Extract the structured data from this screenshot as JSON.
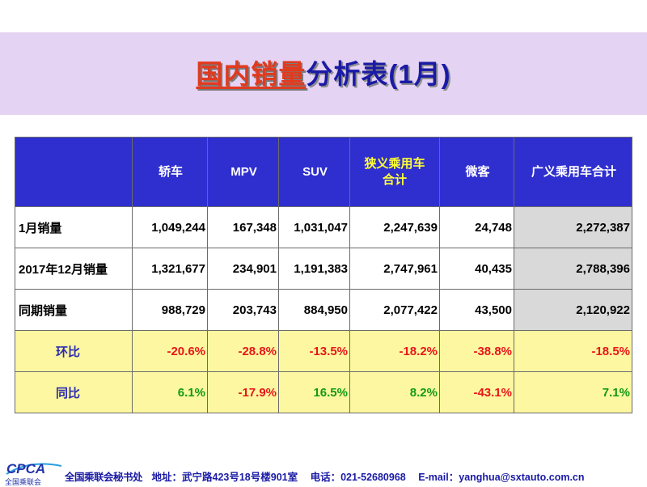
{
  "title": {
    "red": "国内销量",
    "blue": "分析表(1月)"
  },
  "table": {
    "headers": [
      "",
      "轿车",
      "MPV",
      "SUV",
      "狭义乘用车合计",
      "微客",
      "广义乘用车合计"
    ],
    "rows": [
      {
        "label": "1月销量",
        "values": [
          "1,049,244",
          "167,348",
          "1,031,047",
          "2,247,639",
          "24,748",
          "2,272,387"
        ]
      },
      {
        "label": "2017年12月销量",
        "values": [
          "1,321,677",
          "234,901",
          "1,191,383",
          "2,747,961",
          "40,435",
          "2,788,396"
        ]
      },
      {
        "label": "同期销量",
        "values": [
          "988,729",
          "203,743",
          "884,950",
          "2,077,422",
          "43,500",
          "2,120,922"
        ]
      },
      {
        "label": "环比",
        "values": [
          "-20.6%",
          "-28.8%",
          "-13.5%",
          "-18.2%",
          "-38.8%",
          "-18.5%"
        ]
      },
      {
        "label": "同比",
        "values": [
          "6.1%",
          "-17.9%",
          "16.5%",
          "8.2%",
          "-43.1%",
          "7.1%"
        ]
      }
    ]
  },
  "colors": {
    "header_bg": "#2f2fd0",
    "highlight_header_text": "#ffff33",
    "pct_row_bg": "#fcf7a0",
    "total_col_bg": "#d9d9d9",
    "negative": "#e8161a",
    "positive": "#129a12"
  },
  "footer": {
    "logo_text": "CPCA",
    "logo_sub": "全国乘联会",
    "org": "全国乘联会秘书处",
    "address": "地址：武宁路423号18号楼901室",
    "phone": "电话：021-52680968",
    "email": "E-mail：yanghua@sxtauto.com.cn"
  }
}
